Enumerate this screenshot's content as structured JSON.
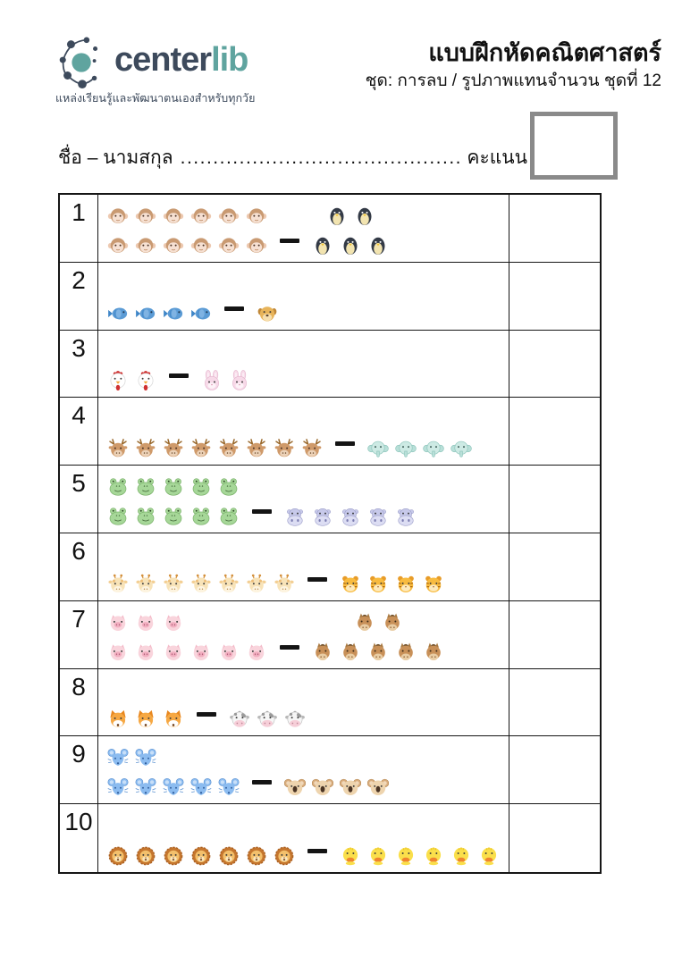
{
  "header": {
    "logo": {
      "wordmark_1": "center",
      "wordmark_2": "lib",
      "tagline": "แหล่งเรียนรู้และพัฒนาตนเองสำหรับทุกวัย",
      "brand_navy": "#3d4a5c",
      "brand_teal": "#5fa49f"
    },
    "title": "แบบฝึกหัดคณิตศาสตร์",
    "subtitle": "ชุด: การลบ / รูปภาพแทนจำนวน ชุดที่ 12"
  },
  "name_line": {
    "label": "ชื่อ – นามสกุล",
    "dots": "..................................................",
    "score_label": "คะแนน"
  },
  "worksheet": {
    "operator": "minus",
    "rows": [
      {
        "number": "1",
        "minuend": {
          "animal": "monkey",
          "count": 12,
          "lines": [
            6,
            6
          ]
        },
        "subtrahend": {
          "animal": "penguin",
          "count": 5,
          "lines": [
            2,
            3
          ]
        }
      },
      {
        "number": "2",
        "minuend": {
          "animal": "fish",
          "count": 4,
          "lines": [
            4
          ]
        },
        "subtrahend": {
          "animal": "dog",
          "count": 1,
          "lines": [
            1
          ]
        }
      },
      {
        "number": "3",
        "minuend": {
          "animal": "chicken",
          "count": 2,
          "lines": [
            2
          ]
        },
        "subtrahend": {
          "animal": "rabbit",
          "count": 2,
          "lines": [
            2
          ]
        }
      },
      {
        "number": "4",
        "minuend": {
          "animal": "deer",
          "count": 8,
          "lines": [
            8
          ]
        },
        "subtrahend": {
          "animal": "elephant",
          "count": 4,
          "lines": [
            4
          ]
        }
      },
      {
        "number": "5",
        "minuend": {
          "animal": "frog",
          "count": 10,
          "lines": [
            5,
            5
          ]
        },
        "subtrahend": {
          "animal": "hippo",
          "count": 5,
          "lines": [
            5
          ]
        }
      },
      {
        "number": "6",
        "minuend": {
          "animal": "giraffe",
          "count": 7,
          "lines": [
            7
          ]
        },
        "subtrahend": {
          "animal": "tiger",
          "count": 4,
          "lines": [
            4
          ]
        }
      },
      {
        "number": "7",
        "minuend": {
          "animal": "pig",
          "count": 9,
          "lines": [
            3,
            6
          ]
        },
        "subtrahend": {
          "animal": "horse",
          "count": 7,
          "lines": [
            2,
            5
          ]
        }
      },
      {
        "number": "8",
        "minuend": {
          "animal": "fox",
          "count": 3,
          "lines": [
            3
          ]
        },
        "subtrahend": {
          "animal": "cow",
          "count": 3,
          "lines": [
            3
          ]
        }
      },
      {
        "number": "9",
        "minuend": {
          "animal": "mouse",
          "count": 7,
          "lines": [
            2,
            5
          ]
        },
        "subtrahend": {
          "animal": "koala",
          "count": 4,
          "lines": [
            4
          ]
        }
      },
      {
        "number": "10",
        "minuend": {
          "animal": "lion",
          "count": 7,
          "lines": [
            7
          ]
        },
        "subtrahend": {
          "animal": "duck",
          "count": 6,
          "lines": [
            6
          ]
        }
      }
    ]
  }
}
